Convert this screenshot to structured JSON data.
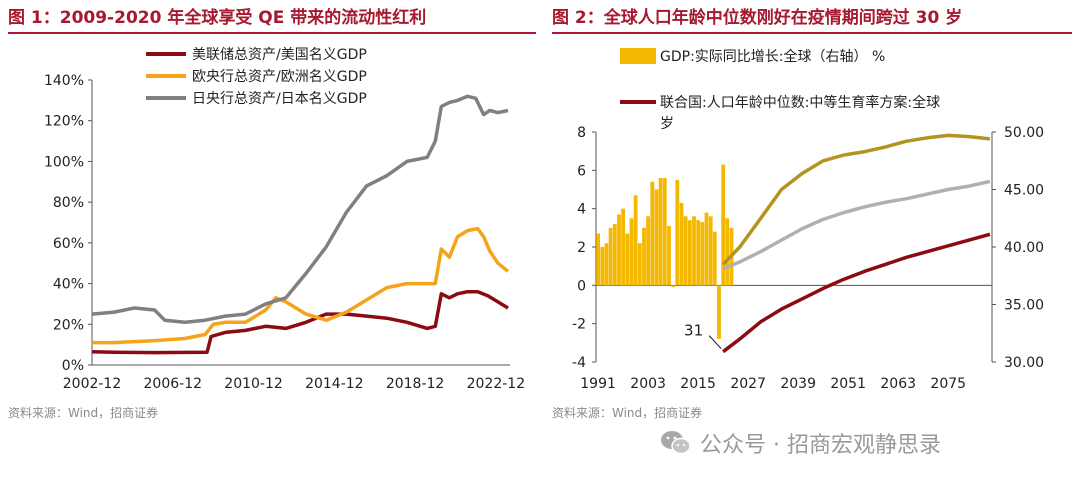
{
  "panels": {
    "left": {
      "title": "图 1：2009-2020 年全球享受 QE 带来的流动性红利",
      "source": "资料来源：Wind，招商证券"
    },
    "right": {
      "title": "图 2：全球人口年龄中位数刚好在疫情期间跨过 30 岁",
      "source": "资料来源：Wind，招商证券"
    }
  },
  "watermark": {
    "text": "公众号 · 招商宏观静思录",
    "icon": "wechat-icon"
  },
  "chart_data": [
    {
      "type": "line",
      "legend_position": "top-center",
      "grid": false,
      "ylim": [
        0,
        140
      ],
      "y_ticks": [
        "0%",
        "20%",
        "40%",
        "60%",
        "80%",
        "100%",
        "120%",
        "140%"
      ],
      "x_ticks": [
        "2002-12",
        "2006-12",
        "2010-12",
        "2014-12",
        "2018-12",
        "2022-12"
      ],
      "series": [
        {
          "name": "美联储总资产/美国名义GDP",
          "color": "#8b0a14",
          "x": [
            2002.9,
            2004,
            2006,
            2007.5,
            2008.6,
            2008.8,
            2009.5,
            2010.5,
            2011.5,
            2012.5,
            2013.5,
            2014.5,
            2015.5,
            2016.5,
            2017.5,
            2018.5,
            2019.5,
            2019.9,
            2020.2,
            2020.6,
            2021,
            2021.5,
            2022,
            2022.5,
            2023,
            2023.5
          ],
          "values": [
            6.5,
            6.3,
            6.1,
            6.2,
            6.3,
            14,
            16,
            17,
            19,
            18,
            21,
            25,
            25,
            24,
            23,
            21,
            18,
            19,
            35,
            33,
            35,
            36,
            36,
            34,
            31,
            28
          ]
        },
        {
          "name": "欧央行总资产/欧洲名义GDP",
          "color": "#f5a31a",
          "x": [
            2002.9,
            2004,
            2006,
            2007.5,
            2008.5,
            2008.9,
            2009.5,
            2010.5,
            2011.5,
            2012,
            2012.5,
            2013.5,
            2014.5,
            2015.5,
            2016.5,
            2017.5,
            2018.5,
            2019.5,
            2019.9,
            2020.2,
            2020.6,
            2021,
            2021.5,
            2022,
            2022.3,
            2022.6,
            2023,
            2023.5
          ],
          "values": [
            11,
            11,
            12,
            13,
            15,
            20,
            21,
            21,
            27,
            33,
            31,
            25,
            22,
            26,
            32,
            38,
            40,
            40,
            40,
            57,
            53,
            63,
            66,
            67,
            63,
            56,
            50,
            46
          ]
        },
        {
          "name": "日央行总资产/日本名义GDP",
          "color": "#808080",
          "x": [
            2002.9,
            2004,
            2005,
            2006,
            2006.5,
            2007.5,
            2008.5,
            2009.5,
            2010.5,
            2011.5,
            2012.5,
            2013.5,
            2014.5,
            2015.5,
            2016.5,
            2017.5,
            2018.5,
            2019.5,
            2019.9,
            2020.2,
            2020.6,
            2021,
            2021.5,
            2021.9,
            2022.3,
            2022.6,
            2023,
            2023.5
          ],
          "values": [
            25,
            26,
            28,
            27,
            22,
            21,
            22,
            24,
            25,
            30,
            33,
            45,
            58,
            75,
            88,
            93,
            100,
            102,
            110,
            127,
            129,
            130,
            132,
            131,
            123,
            125,
            124,
            125
          ]
        }
      ]
    },
    {
      "type": "bar+line",
      "legend_position": "top",
      "grid": false,
      "left_ylim": [
        -4,
        8
      ],
      "left_ticks": [
        "-4",
        "-2",
        "0",
        "2",
        "4",
        "6",
        "8"
      ],
      "right_ylim": [
        30,
        50
      ],
      "right_ticks": [
        "30.00",
        "35.00",
        "40.00",
        "45.00",
        "50.00"
      ],
      "x_ticks": [
        "1991",
        "2003",
        "2015",
        "2027",
        "2039",
        "2051",
        "2063",
        "2075"
      ],
      "annotation": "31",
      "bar_series": {
        "name": "GDP:实际同比增长:全球（右轴） %",
        "color": "#f5b800",
        "axis": "left",
        "x": [
          1991,
          1992,
          1993,
          1994,
          1995,
          1996,
          1997,
          1998,
          1999,
          2000,
          2001,
          2002,
          2003,
          2004,
          2005,
          2006,
          2007,
          2008,
          2009,
          2010,
          2011,
          2012,
          2013,
          2014,
          2015,
          2016,
          2017,
          2018,
          2019,
          2020,
          2021,
          2022,
          2023
        ],
        "values": [
          2.7,
          2.0,
          2.2,
          3.0,
          3.2,
          3.7,
          4.0,
          2.7,
          3.5,
          4.7,
          2.2,
          3.0,
          3.6,
          5.4,
          5.0,
          5.6,
          5.6,
          3.1,
          -0.1,
          5.5,
          4.3,
          3.6,
          3.4,
          3.6,
          3.4,
          3.3,
          3.8,
          3.6,
          2.8,
          -2.8,
          6.3,
          3.5,
          3.0
        ]
      },
      "line_series": [
        {
          "name": "联合国:人口年龄中位数:中等生育率方案:全球 岁",
          "color": "#8b0a14",
          "axis": "right",
          "x": [
            2021,
            2025,
            2030,
            2035,
            2040,
            2045,
            2050,
            2055,
            2060,
            2065,
            2070,
            2075,
            2080,
            2085
          ],
          "values": [
            30.9,
            32.0,
            33.5,
            34.6,
            35.5,
            36.4,
            37.2,
            37.9,
            38.5,
            39.1,
            39.6,
            40.1,
            40.6,
            41.1
          ]
        },
        {
          "name": "",
          "color": "#b0b0b0",
          "axis": "right",
          "x": [
            2021,
            2025,
            2030,
            2035,
            2040,
            2045,
            2050,
            2055,
            2060,
            2065,
            2070,
            2075,
            2080,
            2085
          ],
          "values": [
            38.1,
            38.7,
            39.6,
            40.6,
            41.6,
            42.4,
            43.0,
            43.5,
            43.9,
            44.2,
            44.6,
            45.0,
            45.3,
            45.7
          ]
        },
        {
          "name": "",
          "color": "#b39421",
          "axis": "right",
          "x": [
            2021,
            2025,
            2030,
            2035,
            2040,
            2045,
            2050,
            2055,
            2060,
            2065,
            2070,
            2075,
            2080,
            2085
          ],
          "values": [
            38.5,
            40.0,
            42.5,
            45.0,
            46.4,
            47.5,
            48.0,
            48.3,
            48.7,
            49.2,
            49.5,
            49.7,
            49.6,
            49.4
          ]
        }
      ]
    }
  ]
}
